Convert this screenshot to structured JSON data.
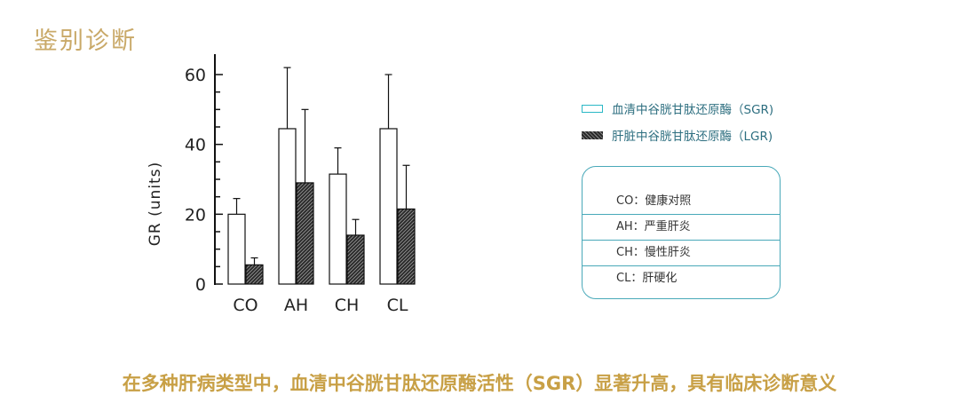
{
  "slide": {
    "title": "鉴别诊断",
    "conclusion": "在多种肝病类型中，血清中谷胱甘肽还原酶活性（SGR）显著升高，具有临床诊断意义"
  },
  "legend": {
    "items": [
      {
        "label": "血清中谷胱甘肽还原酶（SGR)",
        "swatch": "white-fill-teal-border"
      },
      {
        "label": "肝脏中谷胱甘肽还原酶（LGR)",
        "swatch": "dark-crosshatch"
      }
    ]
  },
  "abbreviations": [
    {
      "text": "CO：健康对照"
    },
    {
      "text": "AH：严重肝炎"
    },
    {
      "text": "CH：慢性肝炎"
    },
    {
      "text": "CL：肝硬化"
    }
  ],
  "colors": {
    "title": "#c9a968",
    "conclusion": "#c8a046",
    "legend_text": "#2e6f80",
    "box_border": "#49a9b9",
    "sgr_swatch_border": "#2bb8c6",
    "lgr_fill": "#2a2a2a"
  },
  "chart_data": {
    "type": "bar",
    "categories": [
      "CO",
      "AH",
      "CH",
      "CL"
    ],
    "series": [
      {
        "name": "血清中谷胱甘肽还原酶（SGR)",
        "values": [
          20,
          44.5,
          31.5,
          44.5
        ],
        "error": [
          4.5,
          17.5,
          7.5,
          15.5
        ],
        "fill": "white"
      },
      {
        "name": "肝脏中谷胱甘肽还原酶（LGR)",
        "values": [
          5.5,
          29,
          14,
          21.5
        ],
        "error": [
          2,
          21,
          4.5,
          12.5
        ],
        "fill": "crosshatch"
      }
    ],
    "ylabel": "GR (units)",
    "xlabel": "",
    "ylim": [
      0,
      60
    ],
    "yticks": [
      0,
      20,
      40,
      60
    ],
    "grid": false,
    "legend_position": "right"
  }
}
